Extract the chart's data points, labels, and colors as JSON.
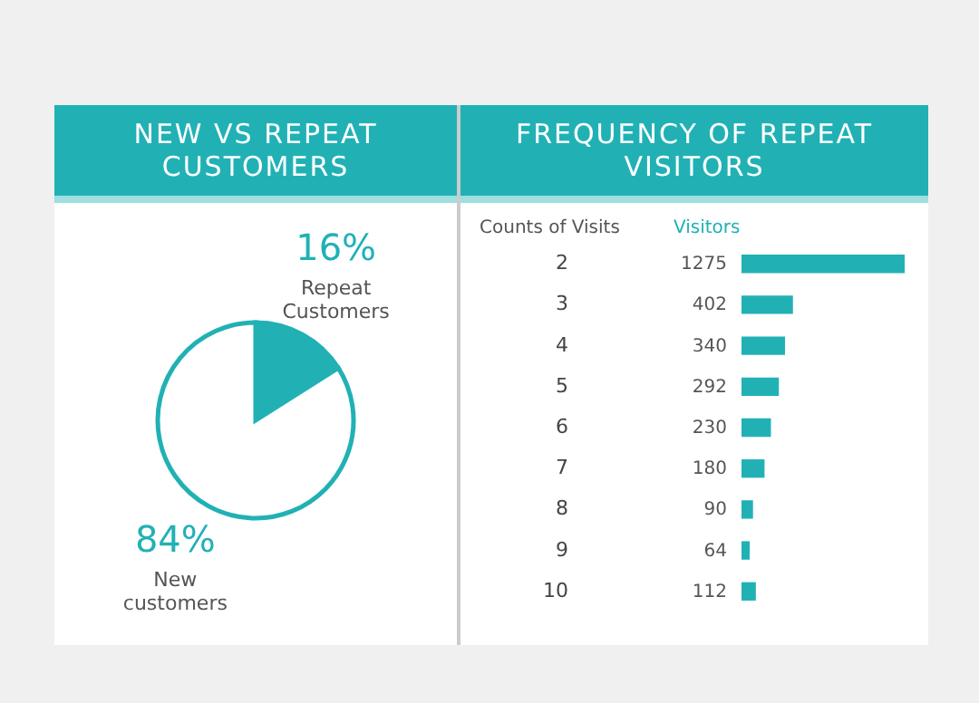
{
  "chart_data": [
    {
      "type": "pie",
      "title": "NEW VS REPEAT CUSTOMERS",
      "categories": [
        "Repeat Customers",
        "New customers"
      ],
      "values": [
        16,
        84
      ],
      "value_labels": [
        "16%",
        "84%"
      ],
      "colors": [
        "#21b1b5",
        "#ffffff"
      ]
    },
    {
      "type": "bar",
      "orientation": "horizontal",
      "title": "FREQUENCY OF REPEAT VISITORS",
      "ylabel": "Counts of Visits",
      "xlabel": "Visitors",
      "categories": [
        "2",
        "3",
        "4",
        "5",
        "6",
        "7",
        "8",
        "9",
        "10"
      ],
      "values": [
        1275,
        402,
        340,
        292,
        230,
        180,
        90,
        64,
        112
      ],
      "color": "#21b1b5",
      "data_labels": true,
      "tick_labels": "y",
      "grid": false
    }
  ]
}
